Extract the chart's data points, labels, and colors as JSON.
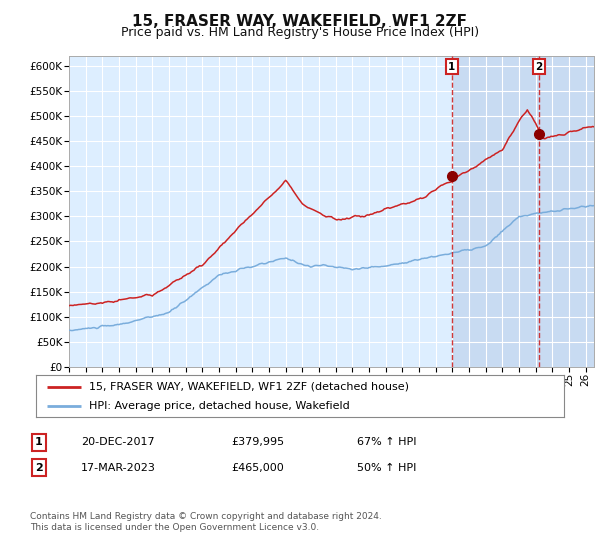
{
  "title": "15, FRASER WAY, WAKEFIELD, WF1 2ZF",
  "subtitle": "Price paid vs. HM Land Registry's House Price Index (HPI)",
  "ylim": [
    0,
    620000
  ],
  "yticks": [
    0,
    50000,
    100000,
    150000,
    200000,
    250000,
    300000,
    350000,
    400000,
    450000,
    500000,
    550000,
    600000
  ],
  "ytick_labels": [
    "£0",
    "£50K",
    "£100K",
    "£150K",
    "£200K",
    "£250K",
    "£300K",
    "£350K",
    "£400K",
    "£450K",
    "£500K",
    "£550K",
    "£600K"
  ],
  "hpi_color": "#7aaddc",
  "price_color": "#cc2222",
  "bg_color": "#ddeeff",
  "vspan_color": "#c5d8f0",
  "marker_color": "#8b0000",
  "marker1_date": 2017.97,
  "marker1_value": 379995,
  "marker2_date": 2023.21,
  "marker2_value": 465000,
  "vline1_date": 2017.97,
  "vline2_date": 2023.21,
  "legend_line1": "15, FRASER WAY, WAKEFIELD, WF1 2ZF (detached house)",
  "legend_line2": "HPI: Average price, detached house, Wakefield",
  "table_row1_num": "1",
  "table_row1_date": "20-DEC-2017",
  "table_row1_price": "£379,995",
  "table_row1_hpi": "67% ↑ HPI",
  "table_row2_num": "2",
  "table_row2_date": "17-MAR-2023",
  "table_row2_price": "£465,000",
  "table_row2_hpi": "50% ↑ HPI",
  "footnote": "Contains HM Land Registry data © Crown copyright and database right 2024.\nThis data is licensed under the Open Government Licence v3.0.",
  "xmin": 1995.0,
  "xmax": 2026.5,
  "title_fontsize": 11,
  "subtitle_fontsize": 9,
  "tick_fontsize": 7.5,
  "legend_fontsize": 8
}
